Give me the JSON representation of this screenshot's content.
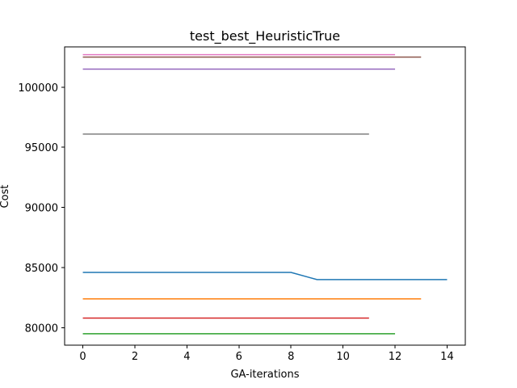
{
  "chart_data": {
    "type": "line",
    "title": "test_best_HeuristicTrue",
    "xlabel": "GA-iterations",
    "ylabel": "Cost",
    "xlim": [
      -0.7,
      14.7
    ],
    "ylim": [
      78550,
      103350
    ],
    "xticks": [
      0,
      2,
      4,
      6,
      8,
      10,
      12,
      14
    ],
    "yticks": [
      80000,
      85000,
      90000,
      95000,
      100000
    ],
    "grid": false,
    "legend": "none",
    "series": [
      {
        "color": "#1f77b4",
        "x": [
          0,
          1,
          2,
          3,
          4,
          5,
          6,
          7,
          8,
          9,
          10,
          11,
          12,
          13,
          14
        ],
        "y": [
          84600,
          84600,
          84600,
          84600,
          84600,
          84600,
          84600,
          84600,
          84600,
          84000,
          84000,
          84000,
          84000,
          84000,
          84000
        ]
      },
      {
        "color": "#ff7f0e",
        "x": [
          0,
          13
        ],
        "y": [
          82400,
          82400
        ]
      },
      {
        "color": "#2ca02c",
        "x": [
          0,
          12
        ],
        "y": [
          79500,
          79500
        ]
      },
      {
        "color": "#d62728",
        "x": [
          0,
          11
        ],
        "y": [
          80800,
          80800
        ]
      },
      {
        "color": "#9467bd",
        "x": [
          0,
          12
        ],
        "y": [
          101500,
          101500
        ]
      },
      {
        "color": "#8c564b",
        "x": [
          0,
          13
        ],
        "y": [
          102500,
          102500
        ]
      },
      {
        "color": "#e377c2",
        "x": [
          0,
          12
        ],
        "y": [
          102700,
          102700
        ]
      },
      {
        "color": "#7f7f7f",
        "x": [
          0,
          11
        ],
        "y": [
          96100,
          96100
        ]
      }
    ]
  }
}
